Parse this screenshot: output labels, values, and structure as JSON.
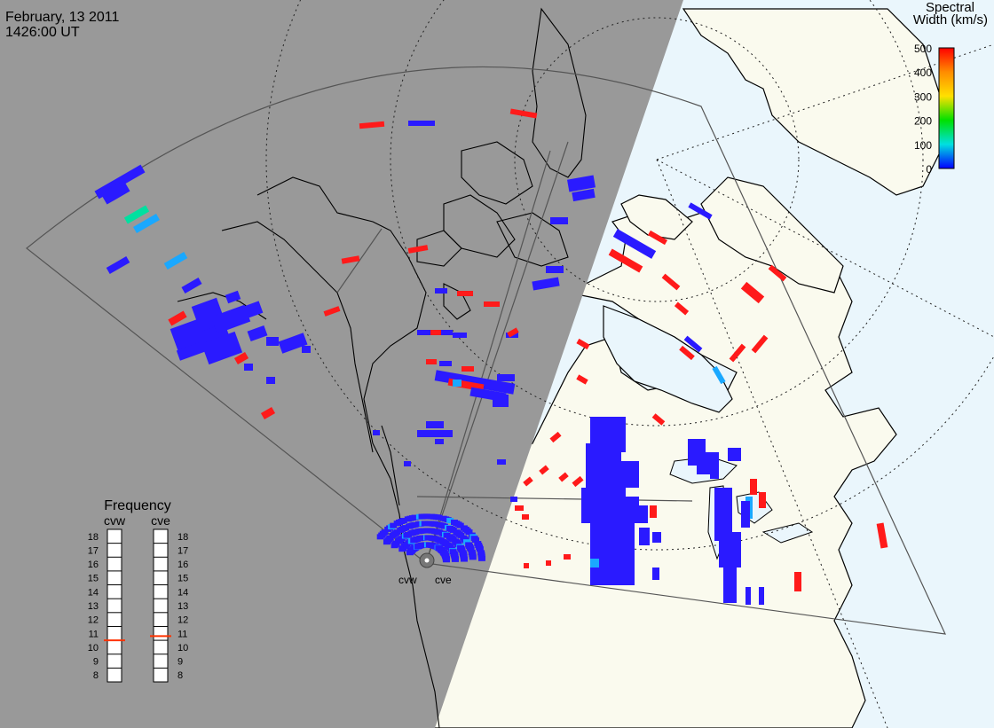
{
  "header": {
    "date": "February, 13 2011",
    "time": "1426:00 UT"
  },
  "colorbar": {
    "title_line1": "Spectral",
    "title_line2": "Width (km/s)",
    "ticks": [
      "500",
      "400",
      "300",
      "200",
      "100",
      "0"
    ],
    "range": [
      0,
      500
    ],
    "colors": [
      "#ff0000",
      "#ff8c00",
      "#ffe000",
      "#00e000",
      "#00e0e0",
      "#0000ff"
    ]
  },
  "frequency_panel": {
    "title": "Frequency",
    "radars": [
      {
        "name": "cvw",
        "current_mhz": 10.5
      },
      {
        "name": "cve",
        "current_mhz": 10.8
      }
    ],
    "levels": [
      "18",
      "17",
      "16",
      "15",
      "14",
      "13",
      "12",
      "11",
      "10",
      "9",
      "8"
    ]
  },
  "radar_sites": {
    "left_label": "cvw",
    "right_label": "cve"
  },
  "colors": {
    "night": "#999999",
    "day_land": "#fafaee",
    "day_water": "#eaf6fc",
    "low_width": "#2a1aff",
    "high_width": "#ff1a1a",
    "mid_width": "#1aa8ff"
  },
  "backscatter_summary": {
    "dominant_low_width_km_s": "0-100",
    "sporadic_high_width_km_s": "400-500"
  }
}
